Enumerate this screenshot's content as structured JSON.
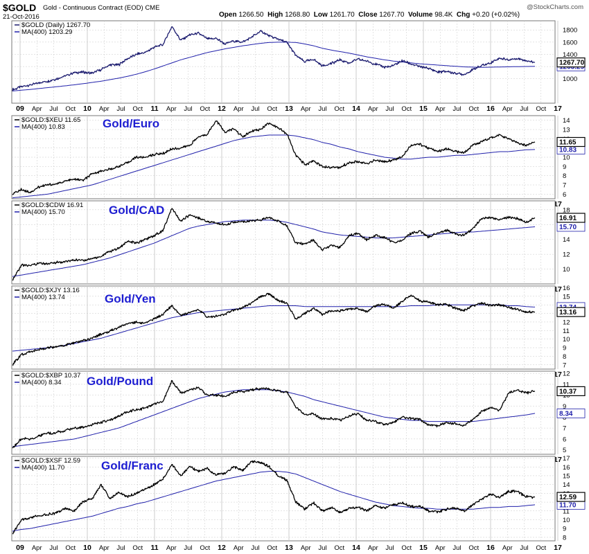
{
  "header": {
    "symbol": "$GOLD",
    "description": "Gold - Continuous Contract (EOD)",
    "exchange": "CME",
    "date": "21-Oct-2016",
    "watermark": "@StockCharts.com",
    "open_label": "Open",
    "open": "1266.50",
    "high_label": "High",
    "high": "1268.80",
    "low_label": "Low",
    "low": "1261.70",
    "close_label": "Close",
    "close": "1267.70",
    "volume_label": "Volume",
    "volume": "98.4K",
    "chg_label": "Chg",
    "chg": "+0.20 (+0.02%)"
  },
  "colors": {
    "price_line": "#1a1a6e",
    "ma_line": "#1f1faa",
    "black_line": "#000000",
    "annotation": "#1d1dd1",
    "grid": "#c8c8c8"
  },
  "chart_data": [
    {
      "type": "line",
      "title": "$GOLD (Daily) 1267.70",
      "series": [
        {
          "name": "$GOLD (Daily) 1267.70",
          "last": "1267.70",
          "values": [
            820,
            870,
            900,
            935,
            960,
            1000,
            1050,
            1100,
            1110,
            1090,
            1150,
            1225,
            1230,
            1330,
            1400,
            1430,
            1520,
            1560,
            1860,
            1630,
            1720,
            1750,
            1650,
            1660,
            1570,
            1620,
            1600,
            1680,
            1780,
            1700,
            1650,
            1590,
            1380,
            1280,
            1320,
            1210,
            1250,
            1310,
            1260,
            1320,
            1290,
            1240,
            1190,
            1210,
            1300,
            1240,
            1200,
            1170,
            1110,
            1120,
            1090,
            1070,
            1150,
            1220,
            1260,
            1340,
            1310,
            1330,
            1300,
            1267.7
          ]
        },
        {
          "name": "MA(400) 1203.29",
          "last": "1203.29",
          "values": [
            800,
            812,
            825,
            840,
            855,
            870,
            885,
            902,
            920,
            940,
            960,
            985,
            1010,
            1040,
            1075,
            1115,
            1160,
            1210,
            1260,
            1310,
            1350,
            1390,
            1430,
            1460,
            1490,
            1515,
            1540,
            1560,
            1580,
            1595,
            1600,
            1600,
            1595,
            1570,
            1540,
            1500,
            1470,
            1445,
            1420,
            1390,
            1360,
            1335,
            1310,
            1290,
            1275,
            1260,
            1245,
            1235,
            1225,
            1215,
            1205,
            1195,
            1190,
            1188,
            1190,
            1193,
            1196,
            1199,
            1201,
            1203.29
          ]
        }
      ],
      "ylim": [
        600,
        1950
      ],
      "yticks": [
        1000,
        1200,
        1400,
        1600,
        1800
      ]
    },
    {
      "type": "line",
      "title": "$GOLD:$XEU 11.65",
      "annotation": "Gold/Euro",
      "series": [
        {
          "name": "$GOLD:$XEU 11.65",
          "last": "11.65",
          "values": [
            6.0,
            6.5,
            6.2,
            6.8,
            7.0,
            7.1,
            7.4,
            7.6,
            7.5,
            8.2,
            8.5,
            8.7,
            9.0,
            9.4,
            10.0,
            10.0,
            10.3,
            10.4,
            10.9,
            11.0,
            11.3,
            12.2,
            12.5,
            14.0,
            12.7,
            13.1,
            12.2,
            12.8,
            13.0,
            13.7,
            13.2,
            12.5,
            10.2,
            9.2,
            9.6,
            9.0,
            8.9,
            8.9,
            9.4,
            9.5,
            9.3,
            9.7,
            9.5,
            9.7,
            10.1,
            11.3,
            11.4,
            11.0,
            10.6,
            10.9,
            10.6,
            10.5,
            11.3,
            11.7,
            12.1,
            12.4,
            12.0,
            11.6,
            11.3,
            11.65
          ]
        },
        {
          "name": "MA(400) 10.83",
          "last": "10.83",
          "values": [
            5.6,
            5.7,
            5.8,
            5.9,
            6.0,
            6.2,
            6.4,
            6.6,
            6.8,
            7.0,
            7.3,
            7.6,
            7.9,
            8.2,
            8.5,
            8.8,
            9.1,
            9.4,
            9.7,
            10.0,
            10.3,
            10.6,
            10.9,
            11.2,
            11.5,
            11.8,
            12.0,
            12.2,
            12.3,
            12.4,
            12.4,
            12.4,
            12.3,
            12.1,
            11.9,
            11.6,
            11.4,
            11.1,
            10.9,
            10.6,
            10.4,
            10.2,
            10.0,
            9.9,
            9.8,
            9.8,
            9.9,
            10.0,
            10.0,
            10.1,
            10.2,
            10.2,
            10.3,
            10.4,
            10.5,
            10.6,
            10.6,
            10.7,
            10.8,
            10.83
          ]
        }
      ],
      "ylim": [
        5.5,
        14.5
      ],
      "yticks": [
        6,
        7,
        8,
        9,
        10,
        11,
        12,
        13,
        14
      ]
    },
    {
      "type": "line",
      "title": "$GOLD:$CDW 16.91",
      "annotation": "Gold/CAD",
      "series": [
        {
          "name": "$GOLD:$CDW 16.91",
          "last": "16.91",
          "values": [
            8.5,
            10.5,
            10.5,
            10.8,
            10.7,
            10.9,
            11.0,
            11.2,
            11.2,
            11.4,
            11.7,
            12.4,
            12.8,
            13.8,
            13.5,
            14.0,
            14.5,
            15.2,
            18.2,
            16.4,
            17.3,
            16.9,
            16.4,
            16.2,
            16.0,
            16.3,
            16.4,
            16.5,
            16.6,
            17.0,
            16.5,
            15.8,
            13.5,
            13.4,
            13.9,
            12.6,
            13.2,
            12.9,
            14.5,
            14.8,
            14.0,
            14.5,
            14.3,
            13.6,
            13.9,
            14.8,
            15.1,
            14.3,
            14.9,
            15.2,
            14.8,
            14.5,
            15.5,
            16.8,
            17.0,
            16.6,
            17.0,
            16.8,
            16.3,
            16.91
          ]
        },
        {
          "name": "MA(400) 15.70",
          "last": "15.70",
          "values": [
            9.0,
            9.2,
            9.4,
            9.6,
            9.8,
            10.0,
            10.2,
            10.4,
            10.6,
            10.9,
            11.2,
            11.5,
            11.9,
            12.3,
            12.7,
            13.1,
            13.5,
            14.0,
            14.5,
            15.0,
            15.5,
            15.8,
            16.0,
            16.2,
            16.4,
            16.5,
            16.6,
            16.6,
            16.6,
            16.6,
            16.5,
            16.3,
            16.0,
            15.7,
            15.4,
            15.0,
            14.8,
            14.6,
            14.5,
            14.4,
            14.3,
            14.2,
            14.2,
            14.2,
            14.3,
            14.4,
            14.5,
            14.6,
            14.7,
            14.8,
            14.9,
            15.0,
            15.0,
            15.1,
            15.2,
            15.3,
            15.4,
            15.5,
            15.6,
            15.7
          ]
        }
      ],
      "ylim": [
        8.0,
        19.2
      ],
      "yticks": [
        10,
        12,
        14,
        16,
        18
      ]
    },
    {
      "type": "line",
      "title": "$GOLD:$XJY 13.16",
      "annotation": "Gold/Yen",
      "series": [
        {
          "name": "$GOLD:$XJY 13.16",
          "last": "13.16",
          "values": [
            7.0,
            8.2,
            8.5,
            8.8,
            9.0,
            9.1,
            9.3,
            9.6,
            9.8,
            10.1,
            10.6,
            10.9,
            11.4,
            11.8,
            12.0,
            11.8,
            12.4,
            12.9,
            13.9,
            12.8,
            13.1,
            13.4,
            12.6,
            12.7,
            12.9,
            13.4,
            13.7,
            14.2,
            15.0,
            15.3,
            14.5,
            14.2,
            12.3,
            13.0,
            13.6,
            12.9,
            13.3,
            13.3,
            13.5,
            13.6,
            13.2,
            13.9,
            14.1,
            13.6,
            14.4,
            15.1,
            14.5,
            14.3,
            14.0,
            14.1,
            13.6,
            13.4,
            13.9,
            14.2,
            13.9,
            14.0,
            13.7,
            13.5,
            13.2,
            13.16
          ]
        },
        {
          "name": "MA(400) 13.74",
          "last": "13.74",
          "values": [
            8.6,
            8.7,
            8.8,
            8.9,
            9.0,
            9.1,
            9.3,
            9.5,
            9.7,
            9.9,
            10.1,
            10.4,
            10.7,
            11.0,
            11.3,
            11.6,
            11.9,
            12.2,
            12.5,
            12.7,
            12.9,
            13.1,
            13.2,
            13.3,
            13.4,
            13.5,
            13.6,
            13.7,
            13.8,
            13.9,
            13.9,
            13.9,
            13.9,
            13.8,
            13.8,
            13.8,
            13.8,
            13.8,
            13.8,
            13.8,
            13.8,
            13.8,
            13.8,
            13.8,
            13.8,
            13.9,
            13.9,
            13.9,
            14.0,
            14.0,
            14.0,
            14.0,
            14.0,
            14.0,
            14.0,
            14.0,
            13.9,
            13.9,
            13.8,
            13.74
          ]
        }
      ],
      "ylim": [
        6.5,
        16.2
      ],
      "yticks": [
        7,
        8,
        9,
        10,
        11,
        12,
        13,
        14,
        15,
        16
      ]
    },
    {
      "type": "line",
      "title": "$GOLD:$XBP 10.37",
      "annotation": "Gold/Pound",
      "series": [
        {
          "name": "$GOLD:$XBP 10.37",
          "last": "10.37",
          "values": [
            5.2,
            6.0,
            6.0,
            6.3,
            6.5,
            6.6,
            6.8,
            7.0,
            7.1,
            7.3,
            7.5,
            7.7,
            8.1,
            8.5,
            8.7,
            8.8,
            9.2,
            9.4,
            11.3,
            10.2,
            10.5,
            10.7,
            10.0,
            10.0,
            9.9,
            10.3,
            10.3,
            10.5,
            10.6,
            10.6,
            10.4,
            10.3,
            8.9,
            8.2,
            8.3,
            7.8,
            7.9,
            7.7,
            8.1,
            8.3,
            7.7,
            7.6,
            7.3,
            7.5,
            8.0,
            7.9,
            7.8,
            7.3,
            7.2,
            7.5,
            7.4,
            7.2,
            7.8,
            8.5,
            8.9,
            8.6,
            10.2,
            10.5,
            10.2,
            10.37
          ]
        },
        {
          "name": "MA(400) 8.34",
          "last": "8.34",
          "values": [
            5.3,
            5.4,
            5.5,
            5.6,
            5.7,
            5.8,
            5.9,
            6.0,
            6.2,
            6.4,
            6.6,
            6.8,
            7.0,
            7.3,
            7.6,
            7.9,
            8.2,
            8.5,
            8.8,
            9.1,
            9.4,
            9.7,
            9.9,
            10.1,
            10.3,
            10.4,
            10.5,
            10.5,
            10.5,
            10.5,
            10.4,
            10.3,
            10.1,
            9.9,
            9.6,
            9.4,
            9.2,
            9.0,
            8.8,
            8.6,
            8.4,
            8.2,
            8.0,
            7.9,
            7.8,
            7.7,
            7.7,
            7.6,
            7.6,
            7.6,
            7.6,
            7.6,
            7.6,
            7.7,
            7.8,
            7.9,
            8.0,
            8.1,
            8.2,
            8.34
          ]
        }
      ],
      "ylim": [
        4.6,
        12.2
      ],
      "yticks": [
        5,
        6,
        7,
        8,
        9,
        10,
        11,
        12
      ]
    },
    {
      "type": "line",
      "title": "$GOLD:$XSF 12.59",
      "annotation": "Gold/Franc",
      "series": [
        {
          "name": "$GOLD:$XSF 12.59",
          "last": "12.59",
          "values": [
            8.4,
            10.0,
            10.2,
            10.5,
            10.6,
            10.8,
            11.3,
            11.0,
            12.1,
            12.4,
            14.0,
            12.4,
            13.1,
            12.6,
            13.0,
            13.5,
            14.0,
            14.6,
            16.3,
            15.0,
            16.0,
            15.5,
            15.8,
            15.1,
            15.3,
            16.0,
            15.6,
            16.6,
            16.5,
            16.0,
            15.0,
            14.5,
            12.0,
            11.2,
            11.9,
            11.0,
            11.4,
            10.8,
            11.3,
            11.4,
            11.0,
            11.6,
            11.3,
            11.7,
            11.9,
            11.5,
            11.5,
            11.0,
            10.9,
            11.2,
            11.3,
            11.0,
            11.7,
            12.3,
            12.9,
            12.5,
            13.2,
            13.2,
            12.6,
            12.59
          ]
        },
        {
          "name": "MA(400) 11.70",
          "last": "11.70",
          "values": [
            8.7,
            8.9,
            9.0,
            9.2,
            9.4,
            9.6,
            9.8,
            10.0,
            10.2,
            10.4,
            10.7,
            11.0,
            11.3,
            11.5,
            11.8,
            12.0,
            12.3,
            12.6,
            12.9,
            13.2,
            13.5,
            13.8,
            14.1,
            14.4,
            14.6,
            14.8,
            15.0,
            15.2,
            15.4,
            15.5,
            15.5,
            15.4,
            15.2,
            14.8,
            14.4,
            14.0,
            13.6,
            13.2,
            12.9,
            12.6,
            12.3,
            12.0,
            11.8,
            11.6,
            11.5,
            11.4,
            11.3,
            11.3,
            11.2,
            11.2,
            11.2,
            11.2,
            11.2,
            11.3,
            11.4,
            11.4,
            11.5,
            11.5,
            11.6,
            11.7
          ]
        }
      ],
      "ylim": [
        7.6,
        17.2
      ],
      "yticks": [
        8,
        9,
        10,
        11,
        12,
        13,
        14,
        15,
        16,
        17
      ]
    }
  ],
  "x_axis": {
    "labels": [
      "09",
      "Apr",
      "Jul",
      "Oct",
      "10",
      "Apr",
      "Jul",
      "Oct",
      "11",
      "Apr",
      "Jul",
      "Oct",
      "12",
      "Apr",
      "Jul",
      "Oct",
      "13",
      "Apr",
      "Jul",
      "Oct",
      "14",
      "Apr",
      "Jul",
      "Oct",
      "15",
      "Apr",
      "Jul",
      "Oct",
      "16",
      "Apr",
      "Jul",
      "Oct",
      "17"
    ],
    "year_labels": [
      "09",
      "10",
      "11",
      "12",
      "13",
      "14",
      "15",
      "16",
      "17"
    ]
  }
}
